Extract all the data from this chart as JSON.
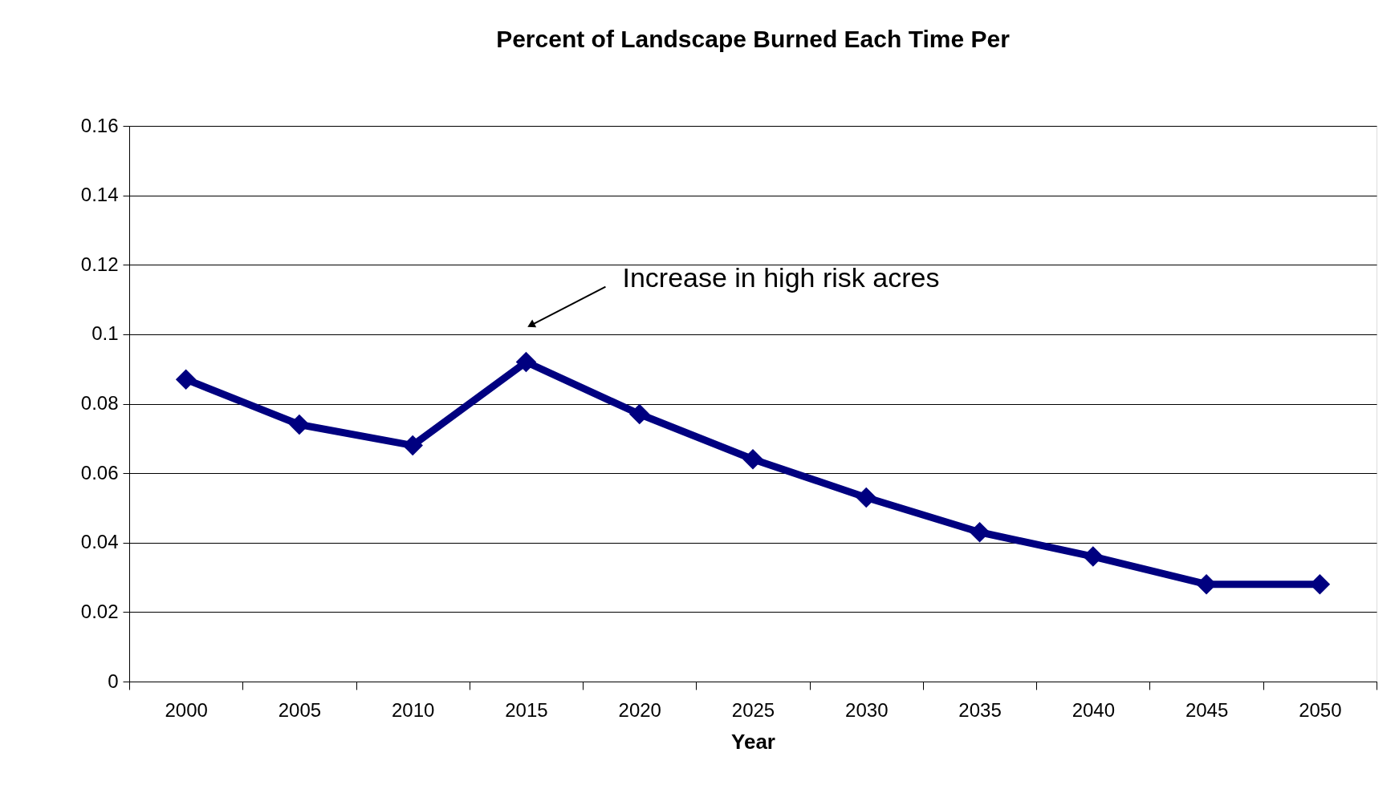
{
  "chart_data": {
    "type": "line",
    "title": "Percent of Landscape Burned Each Time Per",
    "xlabel": "Year",
    "categories": [
      "2000",
      "2005",
      "2010",
      "2015",
      "2020",
      "2025",
      "2030",
      "2035",
      "2040",
      "2045",
      "2050"
    ],
    "series": [
      {
        "color": "#000080",
        "values": [
          0.087,
          0.074,
          0.068,
          0.092,
          0.077,
          0.064,
          0.053,
          0.043,
          0.036,
          0.028,
          0.028
        ]
      }
    ],
    "ylim": [
      0,
      0.16
    ],
    "yticks": [
      0,
      {
        "value": 0.02,
        "label": "0.02"
      },
      {
        "value": 0.04,
        "label": "0.04"
      },
      {
        "value": 0.06,
        "label": "0.06"
      },
      {
        "value": 0.08,
        "label": "0.08"
      },
      {
        "value": 0.1,
        "label": "0.1"
      },
      {
        "value": 0.12,
        "label": "0.12"
      },
      {
        "value": 0.14,
        "label": "0.14"
      },
      {
        "value": 0.16,
        "label": "0.16"
      }
    ],
    "annotations": [
      "Increase in high risk acres"
    ],
    "grid": "y",
    "marker": "diamond",
    "line_style": "solid"
  }
}
